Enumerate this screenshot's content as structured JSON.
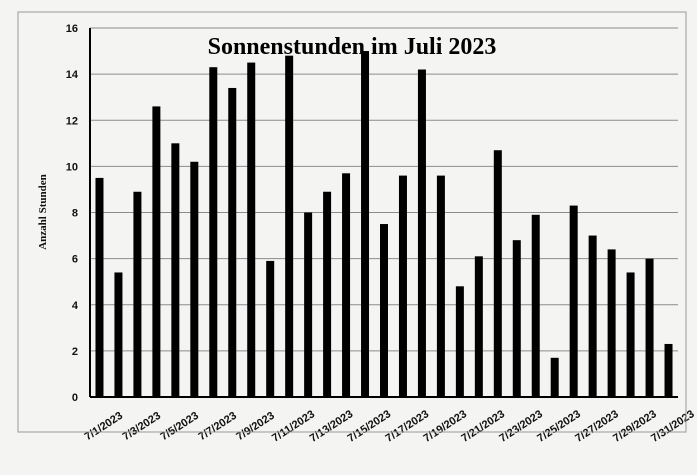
{
  "chart_data": {
    "type": "bar",
    "title": "Sonnenstunden im Juli 2023",
    "ylabel": "Anzahl Stunden",
    "xlabel": "",
    "ylim": [
      0,
      16
    ],
    "yticks": [
      0,
      2,
      4,
      6,
      8,
      10,
      12,
      14,
      16
    ],
    "grid": true,
    "bar_color": "#000000",
    "categories": [
      "7/1/2023",
      "7/2/2023",
      "7/3/2023",
      "7/4/2023",
      "7/5/2023",
      "7/6/2023",
      "7/7/2023",
      "7/8/2023",
      "7/9/2023",
      "7/10/2023",
      "7/11/2023",
      "7/12/2023",
      "7/13/2023",
      "7/14/2023",
      "7/15/2023",
      "7/16/2023",
      "7/17/2023",
      "7/18/2023",
      "7/19/2023",
      "7/20/2023",
      "7/21/2023",
      "7/22/2023",
      "7/23/2023",
      "7/24/2023",
      "7/25/2023",
      "7/26/2023",
      "7/27/2023",
      "7/28/2023",
      "7/29/2023",
      "7/30/2023",
      "7/31/2023"
    ],
    "tick_labels": [
      "7/1/2023",
      "7/3/2023",
      "7/5/2023",
      "7/7/2023",
      "7/9/2023",
      "7/11/2023",
      "7/13/2023",
      "7/15/2023",
      "7/17/2023",
      "7/19/2023",
      "7/21/2023",
      "7/23/2023",
      "7/25/2023",
      "7/27/2023",
      "7/29/2023",
      "7/31/2023"
    ],
    "values": [
      9.5,
      5.4,
      8.9,
      12.6,
      11.0,
      10.2,
      14.3,
      13.4,
      14.5,
      5.9,
      14.8,
      8.0,
      8.9,
      9.7,
      15.0,
      7.5,
      9.6,
      14.2,
      9.6,
      4.8,
      6.1,
      10.7,
      6.8,
      7.9,
      1.7,
      8.3,
      7.0,
      6.4,
      5.4,
      6.0,
      2.3
    ]
  }
}
